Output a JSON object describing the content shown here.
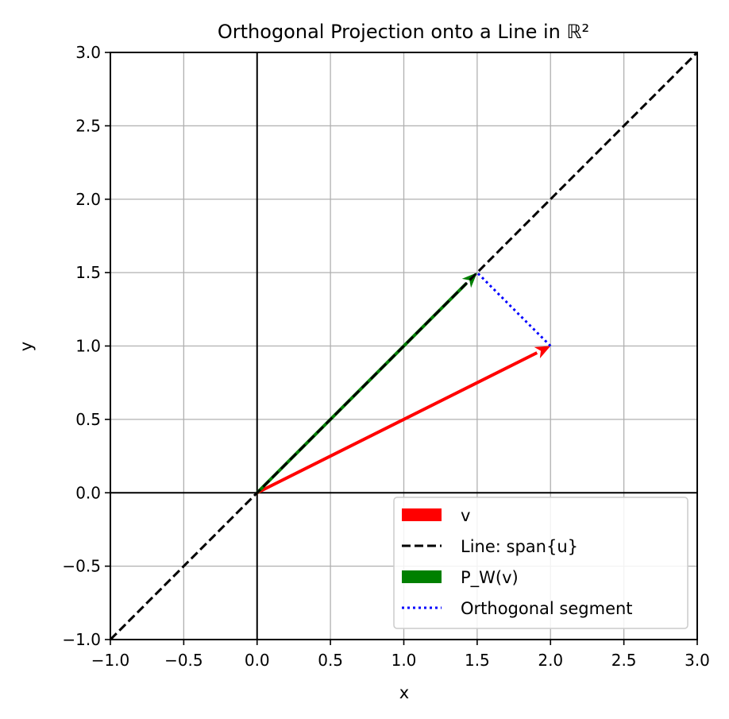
{
  "chart_data": {
    "type": "line",
    "title": "Orthogonal Projection onto a Line in ℝ²",
    "xlabel": "x",
    "ylabel": "y",
    "xlim": [
      -1.0,
      3.0
    ],
    "ylim": [
      -1.0,
      3.0
    ],
    "xticks": [
      "−1.0",
      "−0.5",
      "0.0",
      "0.5",
      "1.0",
      "1.5",
      "2.0",
      "2.5",
      "3.0"
    ],
    "yticks": [
      "−1.0",
      "−0.5",
      "0.0",
      "0.5",
      "1.0",
      "1.5",
      "2.0",
      "2.5",
      "3.0"
    ],
    "xtick_values": [
      -1.0,
      -0.5,
      0.0,
      0.5,
      1.0,
      1.5,
      2.0,
      2.5,
      3.0
    ],
    "ytick_values": [
      -1.0,
      -0.5,
      0.0,
      0.5,
      1.0,
      1.5,
      2.0,
      2.5,
      3.0
    ],
    "grid": true,
    "legend_position": "lower-right",
    "series": [
      {
        "name": "v",
        "kind": "arrow",
        "color": "#ff0000",
        "from": [
          0,
          0
        ],
        "to": [
          2,
          1
        ]
      },
      {
        "name": "Line: span{u}",
        "kind": "dashed-line",
        "color": "#000000",
        "from": [
          -1,
          -1
        ],
        "to": [
          3,
          3
        ]
      },
      {
        "name": "P_W(v)",
        "kind": "arrow",
        "color": "#008000",
        "from": [
          0,
          0
        ],
        "to": [
          1.5,
          1.5
        ]
      },
      {
        "name": "Orthogonal segment",
        "kind": "dotted-line",
        "color": "#0000ff",
        "from": [
          2,
          1
        ],
        "to": [
          1.5,
          1.5
        ]
      }
    ]
  }
}
